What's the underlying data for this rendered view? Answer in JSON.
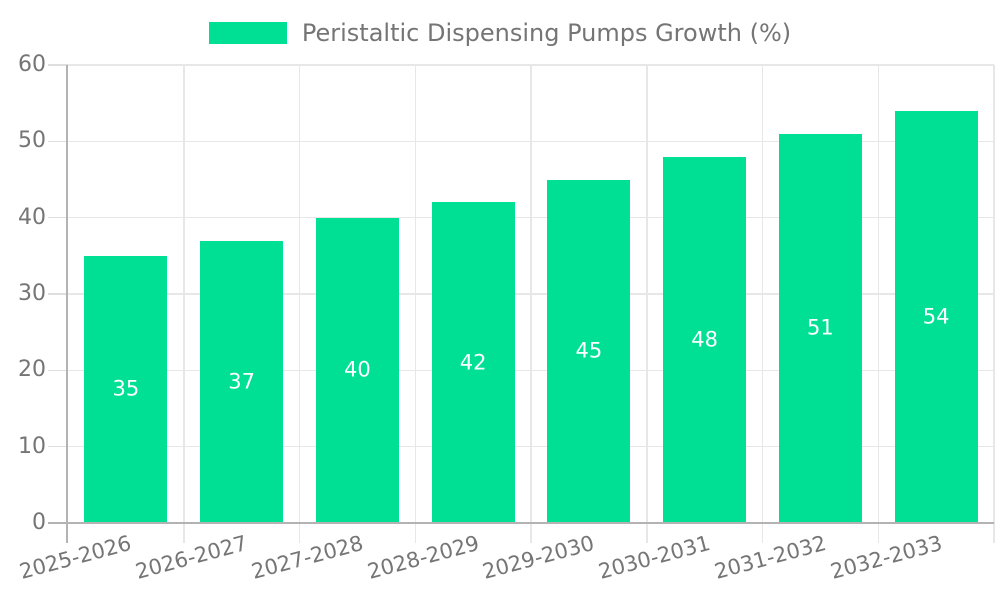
{
  "legend": {
    "label": "Peristaltic Dispensing Pumps Growth (%)"
  },
  "colors": {
    "bar": "#00E095",
    "axis": "#b3b3b3",
    "grid": "#e7e7e7",
    "tick": "#dedede",
    "text": "#757575",
    "value_label": "#ffffff",
    "background": "#ffffff"
  },
  "chart_data": {
    "type": "bar",
    "title": "Peristaltic Dispensing Pumps Growth (%)",
    "categories": [
      "2025-2026",
      "2026-2027",
      "2027-2028",
      "2028-2029",
      "2029-2030",
      "2030-2031",
      "2031-2032",
      "2032-2033"
    ],
    "values": [
      35,
      37,
      40,
      42,
      45,
      48,
      51,
      54
    ],
    "xlabel": "",
    "ylabel": "",
    "ylim": [
      0,
      60
    ],
    "y_ticks": [
      0,
      10,
      20,
      30,
      40,
      50,
      60
    ],
    "grid": "horizontal and vertical, light gray",
    "legend_position": "top-center",
    "value_labels": "white, centered inside bars",
    "x_label_rotation_deg": -15
  }
}
